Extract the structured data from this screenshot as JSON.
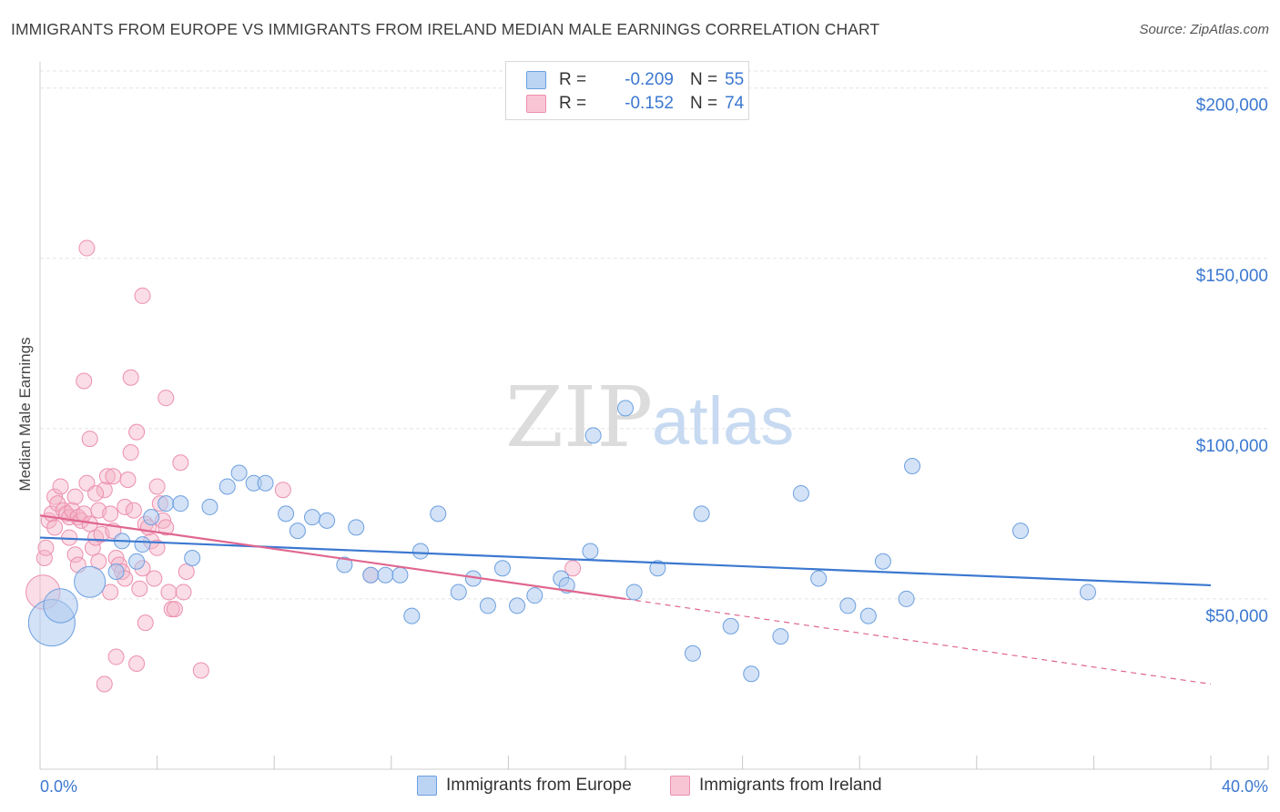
{
  "title": "IMMIGRANTS FROM EUROPE VS IMMIGRANTS FROM IRELAND MEDIAN MALE EARNINGS CORRELATION CHART",
  "source": "Source: ZipAtlas.com",
  "watermark": {
    "zip": "ZIP",
    "atlas": "atlas"
  },
  "colors": {
    "blue": "#3b78d0",
    "blue_fill": "#aecbef",
    "pink": "#e0668f",
    "pink_fill": "#f4b3c8",
    "grid": "#e3e3e3",
    "axis_text": "#3b78d0"
  },
  "legend": {
    "rows": [
      {
        "r_label": "R =",
        "r_value": "-0.209",
        "n_label": "N =",
        "n_value": "55"
      },
      {
        "r_label": "R =",
        "r_value": "-0.152",
        "n_label": "N =",
        "n_value": "74"
      }
    ]
  },
  "bottom_legend": {
    "europe": "Immigrants from Europe",
    "ireland": "Immigrants from Ireland"
  },
  "chart_data": {
    "type": "scatter",
    "xlabel": "",
    "ylabel": "Median Male Earnings",
    "xlim": [
      0,
      40
    ],
    "ylim": [
      0,
      205000
    ],
    "x_tick_labels": {
      "min": "0.0%",
      "max": "40.0%"
    },
    "y_ticks": [
      {
        "value": 200000,
        "label": "$200,000"
      },
      {
        "value": 150000,
        "label": "$150,000"
      },
      {
        "value": 100000,
        "label": "$100,000"
      },
      {
        "value": 50000,
        "label": "$50,000"
      }
    ],
    "series": [
      {
        "name": "Immigrants from Europe",
        "color": "#3b78d0",
        "trend": {
          "x": [
            0,
            40
          ],
          "y": [
            68000,
            54000
          ],
          "dashed_to": null
        },
        "points": [
          {
            "x": 0.4,
            "y": 43000,
            "s": 3
          },
          {
            "x": 0.7,
            "y": 48000,
            "s": 2.2
          },
          {
            "x": 1.7,
            "y": 55000,
            "s": 2
          },
          {
            "x": 2.6,
            "y": 58000,
            "s": 1
          },
          {
            "x": 2.8,
            "y": 67000,
            "s": 1
          },
          {
            "x": 3.3,
            "y": 61000,
            "s": 1
          },
          {
            "x": 3.5,
            "y": 66000,
            "s": 1
          },
          {
            "x": 3.8,
            "y": 74000,
            "s": 1
          },
          {
            "x": 4.3,
            "y": 78000,
            "s": 1
          },
          {
            "x": 4.8,
            "y": 78000,
            "s": 1
          },
          {
            "x": 5.2,
            "y": 62000,
            "s": 1
          },
          {
            "x": 5.8,
            "y": 77000,
            "s": 1
          },
          {
            "x": 6.4,
            "y": 83000,
            "s": 1
          },
          {
            "x": 6.8,
            "y": 87000,
            "s": 1
          },
          {
            "x": 7.3,
            "y": 84000,
            "s": 1
          },
          {
            "x": 7.7,
            "y": 84000,
            "s": 1
          },
          {
            "x": 8.4,
            "y": 75000,
            "s": 1
          },
          {
            "x": 8.8,
            "y": 70000,
            "s": 1
          },
          {
            "x": 9.3,
            "y": 74000,
            "s": 1
          },
          {
            "x": 9.8,
            "y": 73000,
            "s": 1
          },
          {
            "x": 10.4,
            "y": 60000,
            "s": 1
          },
          {
            "x": 10.8,
            "y": 71000,
            "s": 1
          },
          {
            "x": 11.3,
            "y": 57000,
            "s": 1
          },
          {
            "x": 11.8,
            "y": 57000,
            "s": 1
          },
          {
            "x": 12.3,
            "y": 57000,
            "s": 1
          },
          {
            "x": 12.7,
            "y": 45000,
            "s": 1
          },
          {
            "x": 13.0,
            "y": 64000,
            "s": 1
          },
          {
            "x": 13.6,
            "y": 75000,
            "s": 1
          },
          {
            "x": 14.3,
            "y": 52000,
            "s": 1
          },
          {
            "x": 14.8,
            "y": 56000,
            "s": 1
          },
          {
            "x": 15.3,
            "y": 48000,
            "s": 1
          },
          {
            "x": 15.8,
            "y": 59000,
            "s": 1
          },
          {
            "x": 16.3,
            "y": 48000,
            "s": 1
          },
          {
            "x": 16.9,
            "y": 51000,
            "s": 1
          },
          {
            "x": 17.8,
            "y": 56000,
            "s": 1
          },
          {
            "x": 18.0,
            "y": 54000,
            "s": 1
          },
          {
            "x": 18.8,
            "y": 64000,
            "s": 1
          },
          {
            "x": 18.9,
            "y": 98000,
            "s": 1
          },
          {
            "x": 20.0,
            "y": 106000,
            "s": 1
          },
          {
            "x": 20.3,
            "y": 52000,
            "s": 1
          },
          {
            "x": 21.1,
            "y": 59000,
            "s": 1
          },
          {
            "x": 22.3,
            "y": 34000,
            "s": 1
          },
          {
            "x": 22.6,
            "y": 75000,
            "s": 1
          },
          {
            "x": 23.6,
            "y": 42000,
            "s": 1
          },
          {
            "x": 24.3,
            "y": 28000,
            "s": 1
          },
          {
            "x": 25.3,
            "y": 39000,
            "s": 1
          },
          {
            "x": 26.0,
            "y": 81000,
            "s": 1
          },
          {
            "x": 26.6,
            "y": 56000,
            "s": 1
          },
          {
            "x": 27.6,
            "y": 48000,
            "s": 1
          },
          {
            "x": 28.3,
            "y": 45000,
            "s": 1
          },
          {
            "x": 28.8,
            "y": 61000,
            "s": 1
          },
          {
            "x": 29.6,
            "y": 50000,
            "s": 1
          },
          {
            "x": 29.8,
            "y": 89000,
            "s": 1
          },
          {
            "x": 33.5,
            "y": 70000,
            "s": 1
          },
          {
            "x": 35.8,
            "y": 52000,
            "s": 1
          }
        ]
      },
      {
        "name": "Immigrants from Ireland",
        "color": "#e0668f",
        "trend": {
          "x": [
            0,
            20
          ],
          "y": [
            74500,
            50000
          ],
          "dashed_to": {
            "x": 40,
            "y": 25000
          }
        },
        "points": [
          {
            "x": 0.1,
            "y": 52000,
            "s": 2.2
          },
          {
            "x": 0.15,
            "y": 62000,
            "s": 1
          },
          {
            "x": 0.2,
            "y": 65000,
            "s": 1
          },
          {
            "x": 0.3,
            "y": 73000,
            "s": 1
          },
          {
            "x": 0.4,
            "y": 75000,
            "s": 1
          },
          {
            "x": 0.5,
            "y": 80000,
            "s": 1
          },
          {
            "x": 0.6,
            "y": 78000,
            "s": 1
          },
          {
            "x": 0.7,
            "y": 83000,
            "s": 1
          },
          {
            "x": 0.8,
            "y": 76000,
            "s": 1
          },
          {
            "x": 0.9,
            "y": 75000,
            "s": 1
          },
          {
            "x": 1.0,
            "y": 74000,
            "s": 1
          },
          {
            "x": 1.1,
            "y": 76000,
            "s": 1
          },
          {
            "x": 1.2,
            "y": 80000,
            "s": 1
          },
          {
            "x": 1.3,
            "y": 74000,
            "s": 1
          },
          {
            "x": 1.4,
            "y": 73000,
            "s": 1
          },
          {
            "x": 1.5,
            "y": 75000,
            "s": 1
          },
          {
            "x": 1.2,
            "y": 63000,
            "s": 1
          },
          {
            "x": 1.3,
            "y": 60000,
            "s": 1
          },
          {
            "x": 1.6,
            "y": 84000,
            "s": 1
          },
          {
            "x": 1.7,
            "y": 72000,
            "s": 1
          },
          {
            "x": 1.8,
            "y": 65000,
            "s": 1
          },
          {
            "x": 1.9,
            "y": 68000,
            "s": 1
          },
          {
            "x": 2.0,
            "y": 76000,
            "s": 1
          },
          {
            "x": 2.1,
            "y": 69000,
            "s": 1
          },
          {
            "x": 1.5,
            "y": 114000,
            "s": 1
          },
          {
            "x": 1.6,
            "y": 153000,
            "s": 1
          },
          {
            "x": 1.7,
            "y": 97000,
            "s": 1
          },
          {
            "x": 2.2,
            "y": 82000,
            "s": 1
          },
          {
            "x": 2.3,
            "y": 86000,
            "s": 1
          },
          {
            "x": 2.4,
            "y": 75000,
            "s": 1
          },
          {
            "x": 2.5,
            "y": 70000,
            "s": 1
          },
          {
            "x": 2.6,
            "y": 62000,
            "s": 1
          },
          {
            "x": 2.7,
            "y": 60000,
            "s": 1
          },
          {
            "x": 2.8,
            "y": 58000,
            "s": 1
          },
          {
            "x": 2.9,
            "y": 56000,
            "s": 1
          },
          {
            "x": 2.5,
            "y": 86000,
            "s": 1
          },
          {
            "x": 2.6,
            "y": 33000,
            "s": 1
          },
          {
            "x": 2.9,
            "y": 77000,
            "s": 1
          },
          {
            "x": 3.0,
            "y": 85000,
            "s": 1
          },
          {
            "x": 3.1,
            "y": 93000,
            "s": 1
          },
          {
            "x": 3.3,
            "y": 99000,
            "s": 1
          },
          {
            "x": 3.4,
            "y": 53000,
            "s": 1
          },
          {
            "x": 3.5,
            "y": 59000,
            "s": 1
          },
          {
            "x": 3.6,
            "y": 72000,
            "s": 1
          },
          {
            "x": 3.8,
            "y": 67000,
            "s": 1
          },
          {
            "x": 3.9,
            "y": 56000,
            "s": 1
          },
          {
            "x": 4.0,
            "y": 83000,
            "s": 1
          },
          {
            "x": 4.1,
            "y": 78000,
            "s": 1
          },
          {
            "x": 4.2,
            "y": 73000,
            "s": 1
          },
          {
            "x": 4.3,
            "y": 71000,
            "s": 1
          },
          {
            "x": 4.4,
            "y": 52000,
            "s": 1
          },
          {
            "x": 4.5,
            "y": 47000,
            "s": 1
          },
          {
            "x": 4.6,
            "y": 47000,
            "s": 1
          },
          {
            "x": 3.6,
            "y": 43000,
            "s": 1
          },
          {
            "x": 3.1,
            "y": 115000,
            "s": 1
          },
          {
            "x": 4.3,
            "y": 109000,
            "s": 1
          },
          {
            "x": 4.8,
            "y": 90000,
            "s": 1
          },
          {
            "x": 3.3,
            "y": 31000,
            "s": 1
          },
          {
            "x": 2.2,
            "y": 25000,
            "s": 1
          },
          {
            "x": 5.0,
            "y": 58000,
            "s": 1
          },
          {
            "x": 5.5,
            "y": 29000,
            "s": 1
          },
          {
            "x": 3.5,
            "y": 139000,
            "s": 1
          },
          {
            "x": 8.3,
            "y": 82000,
            "s": 1
          },
          {
            "x": 11.3,
            "y": 57000,
            "s": 1
          },
          {
            "x": 18.2,
            "y": 59000,
            "s": 1
          },
          {
            "x": 2.4,
            "y": 52000,
            "s": 1
          },
          {
            "x": 4.0,
            "y": 65000,
            "s": 1
          },
          {
            "x": 1.9,
            "y": 81000,
            "s": 1
          },
          {
            "x": 3.2,
            "y": 76000,
            "s": 1
          },
          {
            "x": 2.0,
            "y": 61000,
            "s": 1
          },
          {
            "x": 1.0,
            "y": 68000,
            "s": 1
          },
          {
            "x": 0.5,
            "y": 71000,
            "s": 1
          },
          {
            "x": 4.9,
            "y": 52000,
            "s": 1
          },
          {
            "x": 3.7,
            "y": 71000,
            "s": 1
          }
        ]
      }
    ]
  }
}
